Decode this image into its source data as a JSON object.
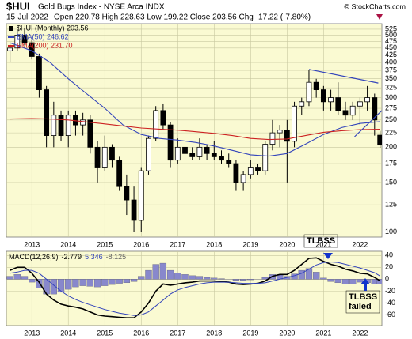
{
  "header": {
    "symbol": "$HUI",
    "name": "Gold Bugs Index - NYSE Arca INDX",
    "source": "© StockCharts.com",
    "date": "15-Jul-2022",
    "quote": "Open 220.78  High 228.63  Low 199.22  Close 203.56  Chg -17.22 (-7.80%)"
  },
  "chart_data": [
    {
      "type": "candlestick",
      "log": true,
      "grid": true,
      "up_color": "#ffffff",
      "down_color": "#000000",
      "xlim": [
        2012.3,
        2022.6
      ],
      "xticks": [
        2013,
        2014,
        2015,
        2016,
        2017,
        2018,
        2019,
        2020,
        2021,
        2022
      ],
      "ylim": [
        96,
        549
      ],
      "yticks": [
        100,
        125,
        150,
        175,
        200,
        225,
        250,
        275,
        300,
        325,
        350,
        375,
        400,
        425,
        450,
        475,
        500,
        525
      ],
      "series": [
        {
          "name": "$HUI (Monthly) 203.56",
          "color": "#000000",
          "x": [
            2012.4,
            2012.6,
            2012.8,
            2013,
            2013.2,
            2013.4,
            2013.6,
            2013.8,
            2014,
            2014.2,
            2014.4,
            2014.6,
            2014.8,
            2015,
            2015.2,
            2015.4,
            2015.6,
            2015.8,
            2016,
            2016.2,
            2016.4,
            2016.6,
            2016.8,
            2017,
            2017.2,
            2017.4,
            2017.6,
            2017.8,
            2018,
            2018.2,
            2018.4,
            2018.6,
            2018.8,
            2019,
            2019.2,
            2019.4,
            2019.6,
            2019.8,
            2020,
            2020.2,
            2020.4,
            2020.6,
            2020.8,
            2021,
            2021.2,
            2021.4,
            2021.6,
            2021.8,
            2022,
            2022.2,
            2022.4,
            2022.55
          ],
          "open": [
            440,
            450,
            500,
            470,
            420,
            320,
            220,
            260,
            220,
            260,
            240,
            250,
            200,
            170,
            200,
            180,
            145,
            130,
            110,
            165,
            215,
            270,
            240,
            180,
            200,
            190,
            185,
            200,
            190,
            185,
            180,
            175,
            150,
            160,
            170,
            165,
            205,
            225,
            230,
            210,
            280,
            290,
            340,
            320,
            290,
            300,
            270,
            260,
            280,
            290,
            300,
            220.78
          ],
          "high": [
            470,
            520,
            530,
            480,
            430,
            330,
            290,
            270,
            270,
            270,
            265,
            260,
            210,
            220,
            205,
            185,
            160,
            145,
            170,
            220,
            280,
            286,
            245,
            215,
            210,
            200,
            215,
            205,
            210,
            195,
            190,
            180,
            165,
            180,
            175,
            210,
            250,
            240,
            250,
            290,
            300,
            375,
            350,
            330,
            320,
            340,
            290,
            290,
            300,
            330,
            310,
            228.63
          ],
          "low": [
            400,
            440,
            460,
            410,
            300,
            200,
            200,
            210,
            200,
            220,
            220,
            190,
            150,
            165,
            170,
            140,
            115,
            100,
            100,
            160,
            210,
            230,
            170,
            175,
            180,
            180,
            180,
            180,
            180,
            175,
            170,
            140,
            140,
            155,
            160,
            160,
            195,
            200,
            150,
            200,
            260,
            280,
            300,
            270,
            270,
            260,
            250,
            250,
            240,
            270,
            220,
            199.22
          ],
          "close": [
            450,
            500,
            470,
            420,
            320,
            220,
            260,
            220,
            260,
            240,
            250,
            200,
            170,
            200,
            180,
            145,
            130,
            110,
            165,
            215,
            270,
            240,
            180,
            200,
            190,
            185,
            200,
            190,
            185,
            180,
            175,
            150,
            160,
            170,
            165,
            205,
            225,
            230,
            210,
            280,
            290,
            340,
            320,
            290,
            300,
            270,
            260,
            280,
            290,
            300,
            250,
            203.56
          ]
        },
        {
          "name": "EMA(50) 246.62",
          "color": "#3344bb",
          "x": [
            2012.4,
            2013,
            2013.5,
            2014,
            2014.5,
            2015,
            2015.5,
            2016,
            2016.5,
            2017,
            2017.5,
            2018,
            2018.5,
            2019,
            2019.5,
            2020,
            2020.5,
            2021,
            2021.5,
            2022,
            2022.55
          ],
          "values": [
            470,
            440,
            400,
            350,
            310,
            275,
            240,
            222,
            215,
            212,
            208,
            202,
            195,
            188,
            186,
            190,
            205,
            222,
            235,
            243,
            246.62
          ]
        },
        {
          "name": "EMA(200) 231.70",
          "color": "#cc2222",
          "x": [
            2012.4,
            2013,
            2013.5,
            2014,
            2014.5,
            2015,
            2015.5,
            2016,
            2016.5,
            2017,
            2017.5,
            2018,
            2018.5,
            2019,
            2019.5,
            2020,
            2020.5,
            2021,
            2021.5,
            2022,
            2022.55
          ],
          "values": [
            252,
            253,
            252,
            250,
            246,
            242,
            238,
            234,
            232,
            230,
            227,
            224,
            220,
            215,
            213,
            214,
            220,
            226,
            229,
            231,
            231.7
          ]
        }
      ],
      "trendlines": [
        {
          "color": "#3344bb",
          "x": [
            2020.6,
            2022.5
          ],
          "values": [
            378,
            338
          ]
        },
        {
          "color": "#3344bb",
          "x": [
            2021.85,
            2022.6
          ],
          "values": [
            218,
            270
          ]
        }
      ]
    },
    {
      "type": "macd",
      "label": "MACD(12,26,9)",
      "grid": true,
      "xlim": [
        2012.3,
        2022.6
      ],
      "xticks": [
        2013,
        2014,
        2015,
        2016,
        2017,
        2018,
        2019,
        2020,
        2021,
        2022
      ],
      "ylim": [
        -78,
        47
      ],
      "yticks": [
        40,
        20,
        0,
        -20,
        -40,
        -60
      ],
      "x": [
        2012.4,
        2012.6,
        2012.8,
        2013,
        2013.2,
        2013.4,
        2013.6,
        2013.8,
        2014,
        2014.2,
        2014.4,
        2014.6,
        2014.8,
        2015,
        2015.2,
        2015.4,
        2015.6,
        2015.8,
        2016,
        2016.2,
        2016.4,
        2016.6,
        2016.8,
        2017,
        2017.2,
        2017.4,
        2017.6,
        2017.8,
        2018,
        2018.2,
        2018.4,
        2018.6,
        2018.8,
        2019,
        2019.2,
        2019.4,
        2019.6,
        2019.8,
        2020,
        2020.2,
        2020.4,
        2020.6,
        2020.8,
        2021,
        2021.2,
        2021.4,
        2021.6,
        2021.8,
        2022,
        2022.2,
        2022.4,
        2022.55
      ],
      "series": [
        {
          "name": "-8.125",
          "kind": "bar",
          "color": "#8888cc",
          "values": [
            5,
            8,
            5,
            -5,
            -15,
            -25,
            -25,
            -22,
            -17,
            -13,
            -11,
            -12,
            -13,
            -11,
            -9,
            -7,
            -6,
            -4,
            5,
            15,
            25,
            27,
            15,
            10,
            8,
            6,
            5,
            3,
            2,
            1,
            0,
            -2,
            -2,
            -1,
            0,
            3,
            8,
            8,
            5,
            9,
            15,
            18,
            12,
            2,
            -4,
            -6,
            -8,
            -8,
            -5,
            -6,
            -8,
            -8.125
          ]
        },
        {
          "name": "-2.779",
          "kind": "line",
          "color": "#000000",
          "values": [
            15,
            20,
            20,
            10,
            -5,
            -25,
            -35,
            -42,
            -45,
            -47,
            -50,
            -55,
            -60,
            -62,
            -63,
            -64,
            -65,
            -65,
            -55,
            -40,
            -20,
            -8,
            -10,
            -8,
            -6,
            -5,
            -3,
            -3,
            -3,
            -4,
            -5,
            -8,
            -9,
            -8,
            -7,
            -3,
            5,
            8,
            8,
            15,
            25,
            35,
            36,
            30,
            25,
            22,
            17,
            14,
            10,
            9,
            3,
            -2.779
          ]
        },
        {
          "name": "5.346",
          "kind": "line",
          "color": "#3344bb",
          "values": [
            10,
            12,
            15,
            15,
            10,
            0,
            -10,
            -20,
            -28,
            -34,
            -39,
            -43,
            -47,
            -51,
            -54,
            -57,
            -59,
            -61,
            -60,
            -55,
            -45,
            -35,
            -25,
            -18,
            -14,
            -11,
            -8,
            -6,
            -5,
            -5,
            -5,
            -6,
            -7,
            -7,
            -7,
            -6,
            -3,
            0,
            3,
            6,
            10,
            17,
            24,
            28,
            29,
            28,
            25,
            22,
            19,
            15,
            11,
            5.346
          ]
        }
      ],
      "annotations": [
        {
          "lines": [
            "TLBSS"
          ]
        },
        {
          "lines": [
            "TLBSS",
            "failed"
          ]
        }
      ]
    }
  ]
}
